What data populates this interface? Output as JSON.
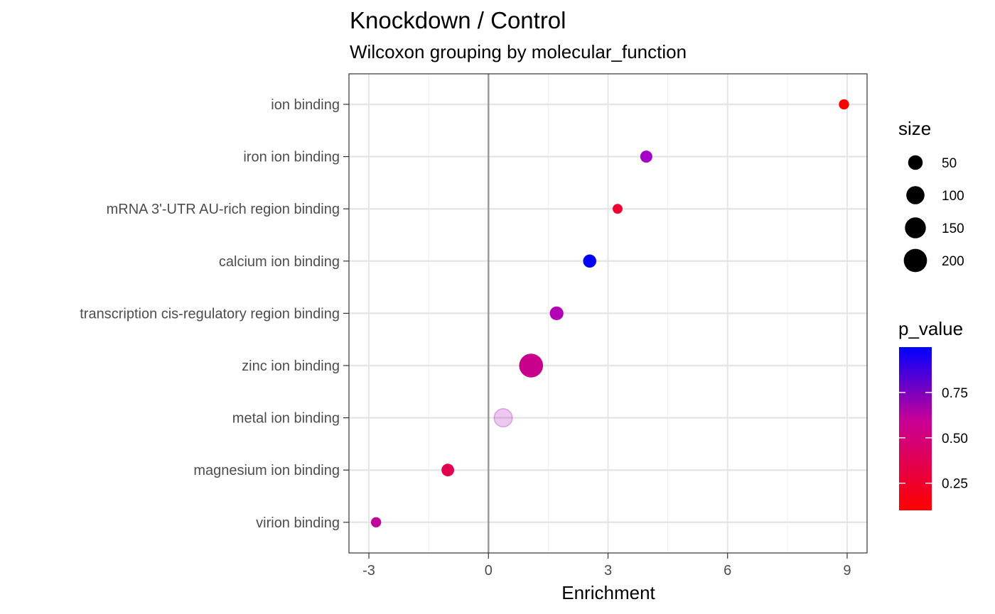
{
  "chart_data": {
    "type": "scatter",
    "title": "Knockdown / Control",
    "subtitle": "Wilcoxon grouping by molecular_function",
    "xlabel": "Enrichment",
    "ylabel": "",
    "xlim": [
      -3.5,
      9.5
    ],
    "x_ticks": [
      -3,
      0,
      3,
      6,
      9
    ],
    "x_tick_labels": [
      "-3",
      "0",
      "3",
      "6",
      "9"
    ],
    "reference_line_x": 0,
    "categories": [
      "ion binding",
      "iron ion binding",
      "mRNA 3'-UTR AU-rich region binding",
      "calcium ion binding",
      "transcription cis-regulatory region binding",
      "zinc ion binding",
      "metal ion binding",
      "magnesium ion binding",
      "virion binding"
    ],
    "points": [
      {
        "category": "ion binding",
        "x": 8.92,
        "size": 12,
        "p_value": 0.12,
        "color": "#ff0000",
        "faded": false
      },
      {
        "category": "iron ion binding",
        "x": 3.96,
        "size": 25,
        "p_value": 0.74,
        "color": "#a500c8",
        "faded": false
      },
      {
        "category": "mRNA 3'-UTR AU-rich region binding",
        "x": 3.24,
        "size": 10,
        "p_value": 0.25,
        "color": "#f00032",
        "faded": false
      },
      {
        "category": "calcium ion binding",
        "x": 2.54,
        "size": 35,
        "p_value": 0.98,
        "color": "#0000ff",
        "faded": false
      },
      {
        "category": "transcription cis-regulatory region binding",
        "x": 1.71,
        "size": 40,
        "p_value": 0.68,
        "color": "#b400b4",
        "faded": false
      },
      {
        "category": "zinc ion binding",
        "x": 1.07,
        "size": 215,
        "p_value": 0.58,
        "color": "#c8008c",
        "faded": false
      },
      {
        "category": "metal ion binding",
        "x": 0.37,
        "size": 100,
        "p_value": 0.72,
        "color": "#aa00bb",
        "faded": true
      },
      {
        "category": "magnesium ion binding",
        "x": -1.02,
        "size": 30,
        "p_value": 0.42,
        "color": "#e10050",
        "faded": false
      },
      {
        "category": "virion binding",
        "x": -2.82,
        "size": 12,
        "p_value": 0.6,
        "color": "#c0009a",
        "faded": false
      }
    ],
    "legend_size": {
      "title": "size",
      "entries": [
        {
          "label": "50",
          "value": 50
        },
        {
          "label": "100",
          "value": 100
        },
        {
          "label": "150",
          "value": 150
        },
        {
          "label": "200",
          "value": 200
        }
      ]
    },
    "legend_color": {
      "title": "p_value",
      "labels": [
        "0.75",
        "0.50",
        "0.25"
      ],
      "values": [
        0.75,
        0.5,
        0.25
      ],
      "range": [
        0.1,
        1.0
      ],
      "color_low": "#ff0000",
      "color_high": "#0000ff"
    },
    "grid": true,
    "legend_position": "right",
    "theme": "bw"
  }
}
